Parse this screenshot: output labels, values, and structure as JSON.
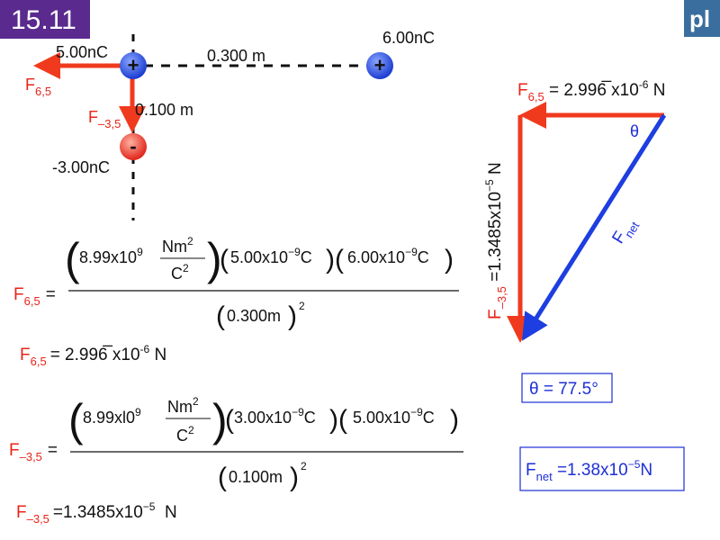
{
  "slide": {
    "number_badge": "15.11",
    "logo_text": "pl",
    "colors": {
      "badge": "#5a2a8e",
      "logo": "#3a6e9e",
      "force_red": "#e8241a",
      "net_blue": "#1d3ee0",
      "positive_charge": "#2a4ee0",
      "negative_charge": "#e8342a"
    }
  },
  "diagram": {
    "charge_5": {
      "label": "5.00nC",
      "sign": "+"
    },
    "charge_6": {
      "label": "6.00nC",
      "sign": "+"
    },
    "charge_neg3": {
      "label": "-3.00nC",
      "sign": "-"
    },
    "distance_horizontal": "0.300 m",
    "distance_vertical": "0.100 m",
    "force_65": {
      "symbol": "F",
      "sub": "6,5"
    },
    "force_neg35": {
      "symbol": "F",
      "sub": "–3,5"
    }
  },
  "equations": {
    "eq1": {
      "lhs_symbol": "F",
      "lhs_sub": "6,5",
      "equals": "=",
      "k_value": "8.99x10",
      "k_exp": "9",
      "k_unit_num": "Nm",
      "k_unit_num_exp": "2",
      "k_unit_den": "C",
      "k_unit_den_exp": "2",
      "q1": "5.00x10",
      "q1_exp": "−9",
      "q1_unit": "C",
      "q2": "6.00x10",
      "q2_exp": "−9",
      "q2_unit": "C",
      "denominator": "0.300m",
      "den_exp": "2"
    },
    "result1": {
      "lhs_symbol": "F",
      "lhs_sub": "6,5",
      "text": "= 2.996̅ x10",
      "exp": "-6",
      "unit": " N"
    },
    "eq2": {
      "lhs_symbol": "F",
      "lhs_sub": "–3,5",
      "equals": "=",
      "k_value": "8.99xl0",
      "k_exp": "9",
      "k_unit_num": "Nm",
      "k_unit_num_exp": "2",
      "k_unit_den": "C",
      "k_unit_den_exp": "2",
      "q1": "3.00x10",
      "q1_exp": "−9",
      "q1_unit": "C",
      "q2": "5.00x10",
      "q2_exp": "−9",
      "q2_unit": "C",
      "denominator": "0.100m",
      "den_exp": "2"
    },
    "result2": {
      "lhs_symbol": "F",
      "lhs_sub": "–3,5",
      "text": "=1.3485x10",
      "exp": "−5",
      "unit": "  N"
    }
  },
  "vector_triangle": {
    "top_label": {
      "symbol": "F",
      "sub": "6,5",
      "text": " = 2.996̅ x10",
      "exp": "-6",
      "unit": " N"
    },
    "side_label": {
      "symbol": "F",
      "sub": "–3,5",
      "text": " =1.3485x10",
      "exp": "−5",
      "unit": " N"
    },
    "angle_symbol": "θ",
    "net_label": {
      "symbol": "F",
      "sub": "net"
    }
  },
  "answers": {
    "theta": "θ = 77.5°",
    "fnet": {
      "symbol": "F",
      "sub": "net",
      "text": " =1.38x10",
      "exp": "−5",
      "unit": "N"
    }
  }
}
